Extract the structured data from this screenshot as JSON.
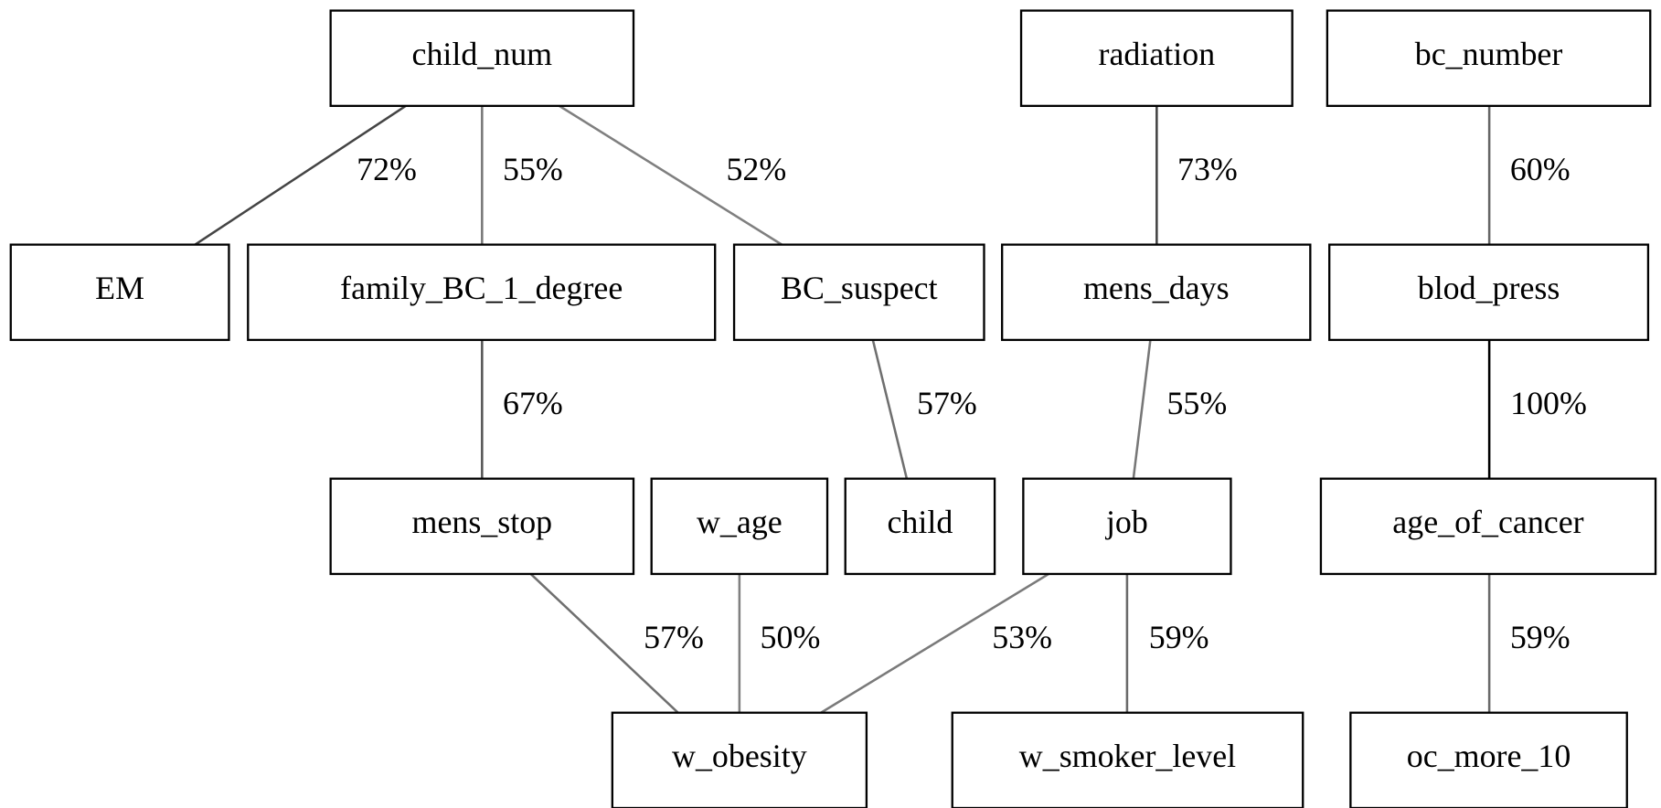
{
  "nodes": [
    {
      "label": "child_num"
    },
    {
      "label": "radiation"
    },
    {
      "label": "bc_number"
    },
    {
      "label": "EM"
    },
    {
      "label": "family_BC_1_degree"
    },
    {
      "label": "BC_suspect"
    },
    {
      "label": "mens_days"
    },
    {
      "label": "blod_press"
    },
    {
      "label": "mens_stop"
    },
    {
      "label": "w_age"
    },
    {
      "label": "child"
    },
    {
      "label": "job"
    },
    {
      "label": "age_of_cancer"
    },
    {
      "label": "w_obesity"
    },
    {
      "label": "w_smoker_level"
    },
    {
      "label": "oc_more_10"
    }
  ],
  "edges": [
    {
      "label": "72%",
      "color": "#444444"
    },
    {
      "label": "55%",
      "color": "#777777"
    },
    {
      "label": "52%",
      "color": "#7f7f7f"
    },
    {
      "label": "73%",
      "color": "#444444"
    },
    {
      "label": "60%",
      "color": "#666666"
    },
    {
      "label": "67%",
      "color": "#555555"
    },
    {
      "label": "57%",
      "color": "#6f6f6f"
    },
    {
      "label": "55%",
      "color": "#777777"
    },
    {
      "label": "100%",
      "color": "#000000"
    },
    {
      "label": "57%",
      "color": "#6f6f6f"
    },
    {
      "label": "50%",
      "color": "#808080"
    },
    {
      "label": "53%",
      "color": "#7a7a7a"
    },
    {
      "label": "59%",
      "color": "#6a6a6a"
    },
    {
      "label": "59%",
      "color": "#6a6a6a"
    }
  ]
}
